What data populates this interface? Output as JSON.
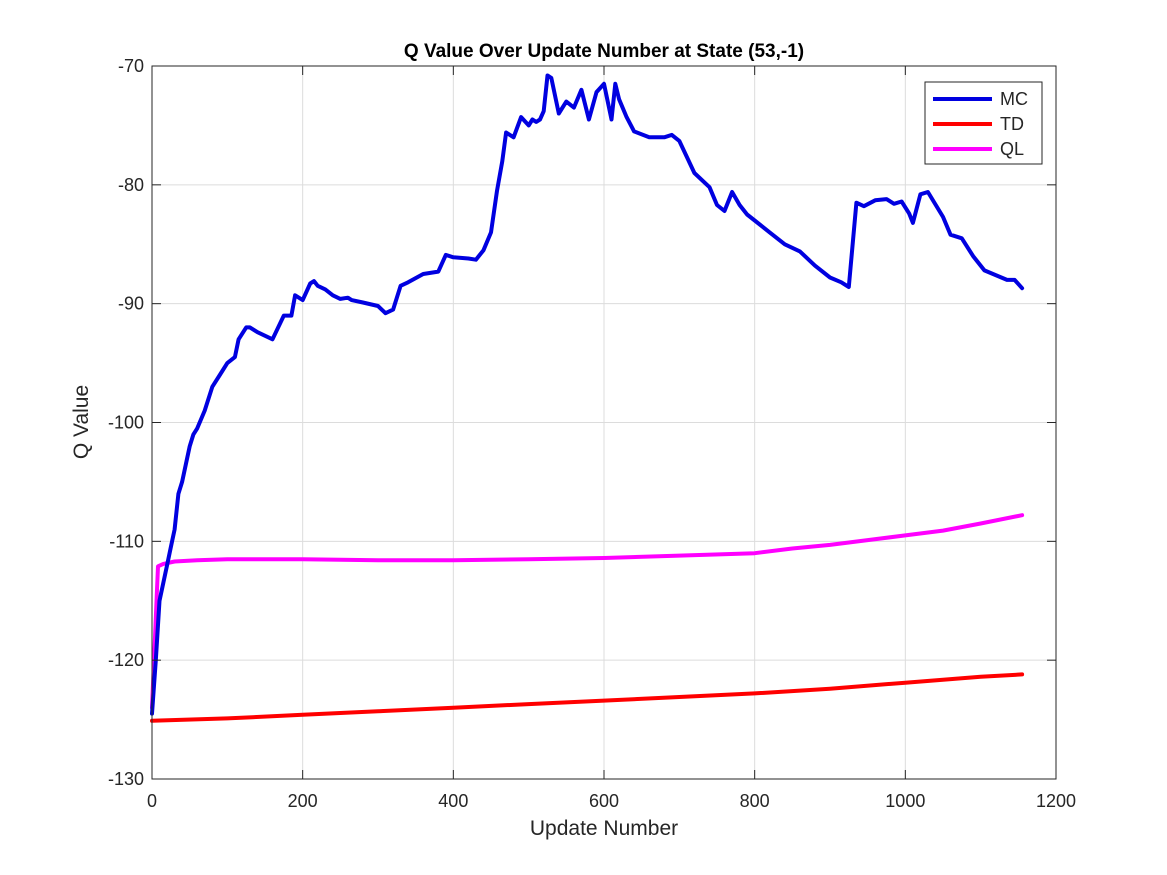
{
  "chart_data": {
    "type": "line",
    "title": "Q Value Over Update Number at State (53,-1)",
    "xlabel": "Update Number",
    "ylabel": "Q Value",
    "xlim": [
      0,
      1200
    ],
    "ylim": [
      -130,
      -70
    ],
    "xticks": [
      0,
      200,
      400,
      600,
      800,
      1000,
      1200
    ],
    "yticks": [
      -130,
      -120,
      -110,
      -100,
      -90,
      -80,
      -70
    ],
    "xtick_labels": [
      "0",
      "200",
      "400",
      "600",
      "800",
      "1000",
      "1200"
    ],
    "ytick_labels": [
      "-130",
      "-120",
      "-110",
      "-100",
      "-90",
      "-80",
      "-70"
    ],
    "grid": true,
    "legend_position": "top-right",
    "series": [
      {
        "name": "MC",
        "color": "#0000e0",
        "x": [
          0,
          5,
          10,
          15,
          20,
          25,
          30,
          35,
          40,
          45,
          50,
          55,
          60,
          70,
          80,
          90,
          100,
          110,
          115,
          125,
          130,
          140,
          160,
          175,
          185,
          190,
          200,
          210,
          215,
          220,
          230,
          240,
          250,
          260,
          265,
          280,
          300,
          310,
          320,
          330,
          340,
          360,
          380,
          390,
          400,
          420,
          430,
          440,
          450,
          458,
          465,
          470,
          480,
          490,
          500,
          505,
          510,
          515,
          520,
          525,
          530,
          540,
          550,
          560,
          570,
          580,
          590,
          600,
          610,
          615,
          620,
          630,
          640,
          660,
          680,
          690,
          700,
          720,
          740,
          750,
          760,
          770,
          780,
          790,
          800,
          820,
          840,
          860,
          880,
          900,
          915,
          925,
          935,
          945,
          960,
          975,
          985,
          995,
          1005,
          1010,
          1020,
          1030,
          1050,
          1060,
          1075,
          1090,
          1105,
          1120,
          1135,
          1145,
          1155
        ],
        "y": [
          -124.5,
          -120,
          -115,
          -113.5,
          -112,
          -110.5,
          -109,
          -106,
          -105,
          -103.5,
          -102,
          -101,
          -100.5,
          -99,
          -97,
          -96,
          -95,
          -94.5,
          -93,
          -92,
          -92,
          -92.4,
          -93,
          -91,
          -91,
          -89.3,
          -89.7,
          -88.3,
          -88.1,
          -88.5,
          -88.8,
          -89.3,
          -89.6,
          -89.5,
          -89.7,
          -89.9,
          -90.2,
          -90.8,
          -90.5,
          -88.5,
          -88.2,
          -87.5,
          -87.3,
          -85.9,
          -86.1,
          -86.2,
          -86.3,
          -85.5,
          -84,
          -80.5,
          -78,
          -75.6,
          -76,
          -74.3,
          -75,
          -74.5,
          -74.7,
          -74.5,
          -73.8,
          -70.8,
          -71,
          -74,
          -73,
          -73.5,
          -72,
          -74.5,
          -72.2,
          -71.5,
          -74.5,
          -71.5,
          -72.8,
          -74.3,
          -75.5,
          -76,
          -76,
          -75.8,
          -76.3,
          -79,
          -80.2,
          -81.7,
          -82.2,
          -80.6,
          -81.7,
          -82.5,
          -83,
          -84,
          -85,
          -85.6,
          -86.8,
          -87.8,
          -88.2,
          -88.6,
          -81.5,
          -81.8,
          -81.3,
          -81.2,
          -81.6,
          -81.4,
          -82.4,
          -83.2,
          -80.8,
          -80.6,
          -82.7,
          -84.2,
          -84.5,
          -86,
          -87.2,
          -87.6,
          -88,
          -88,
          -88.7
        ]
      },
      {
        "name": "TD",
        "color": "#ff0000",
        "x": [
          0,
          100,
          200,
          300,
          400,
          500,
          600,
          700,
          800,
          900,
          1000,
          1100,
          1155
        ],
        "y": [
          -125.1,
          -124.9,
          -124.6,
          -124.3,
          -124,
          -123.7,
          -123.4,
          -123.1,
          -122.8,
          -122.4,
          -121.9,
          -121.4,
          -121.2
        ]
      },
      {
        "name": "QL",
        "color": "#ff00ff",
        "x": [
          0,
          8,
          15,
          30,
          60,
          100,
          200,
          300,
          400,
          500,
          600,
          700,
          800,
          850,
          900,
          950,
          1000,
          1050,
          1100,
          1155
        ],
        "y": [
          -124,
          -112.1,
          -111.9,
          -111.7,
          -111.6,
          -111.5,
          -111.5,
          -111.6,
          -111.6,
          -111.5,
          -111.4,
          -111.2,
          -111,
          -110.6,
          -110.3,
          -109.9,
          -109.5,
          -109.1,
          -108.5,
          -107.8
        ]
      }
    ]
  }
}
